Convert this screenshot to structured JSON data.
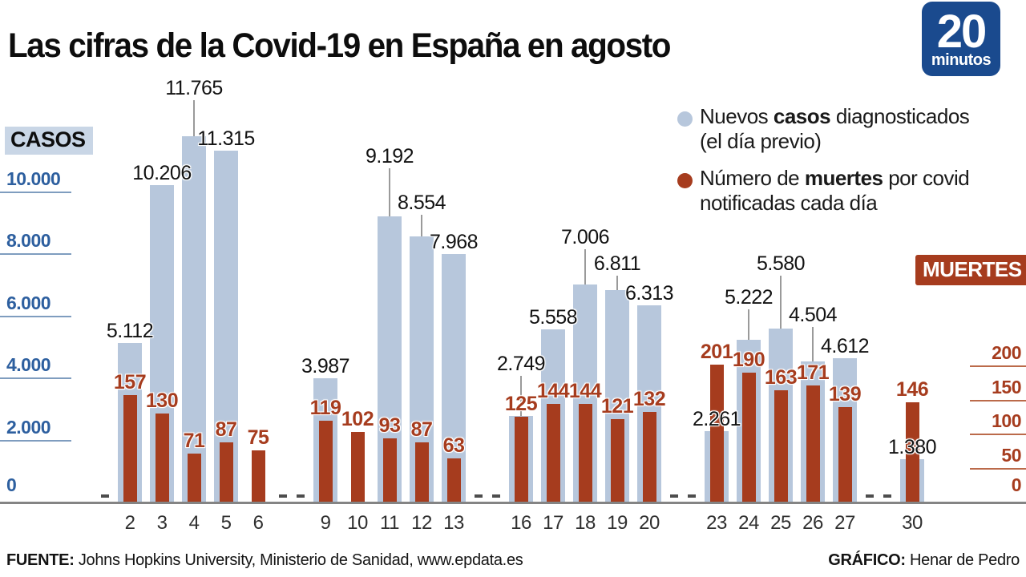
{
  "title": "Las cifras de la Covid-19 en España en agosto",
  "logo": {
    "number": "20",
    "word": "minutos",
    "bg_color": "#1a4a8e"
  },
  "legend": {
    "items": [
      {
        "swatch_color": "#b7c7dc",
        "pre": "Nuevos ",
        "bold": "casos",
        "post": " diagnosticados",
        "line2": "(el día previo)"
      },
      {
        "swatch_color": "#a63c1e",
        "pre": "Número de ",
        "bold": "muertes",
        "post": " por covid",
        "line2": "notificadas cada día"
      }
    ]
  },
  "footer": {
    "source_label": "FUENTE:",
    "source_text": " Johns Hopkins University, Ministerio de Sanidad, www.epdata.es",
    "credit_label": "GRÁFICO:",
    "credit_text": " Henar de Pedro"
  },
  "chart_data": {
    "type": "bar",
    "title": "Las cifras de la Covid-19 en España en agosto",
    "x_unit": "día de agosto",
    "legend_position": "top-right",
    "grid": false,
    "cases_axis": {
      "label": "CASOS",
      "color": "#2d5f9f",
      "max": 12000,
      "ticks": [
        {
          "value": 10000,
          "label": "10.000"
        },
        {
          "value": 8000,
          "label": "8.000"
        },
        {
          "value": 6000,
          "label": "6.000"
        },
        {
          "value": 4000,
          "label": "4.000"
        },
        {
          "value": 2000,
          "label": "2.000"
        }
      ],
      "zero_label": "0"
    },
    "deaths_axis": {
      "label": "MUERTES",
      "color": "#a63c1e",
      "max": 235,
      "ticks": [
        {
          "value": 200,
          "label": "200"
        },
        {
          "value": 150,
          "label": "150"
        },
        {
          "value": 100,
          "label": "100"
        },
        {
          "value": 50,
          "label": "50"
        }
      ],
      "zero_label": "0"
    },
    "series": [
      {
        "name": "Nuevos casos diagnosticados (el día previo)",
        "color": "#b7c7dc"
      },
      {
        "name": "Número de muertes por covid notificadas cada día",
        "color": "#a63c1e"
      }
    ],
    "no_data_days": [
      1,
      7,
      8,
      14,
      15,
      21,
      22,
      28,
      29
    ],
    "points": [
      {
        "day": 2,
        "cases": 5112,
        "cases_label": "5.112",
        "deaths": 157,
        "deaths_label": "157",
        "leader": 0
      },
      {
        "day": 3,
        "cases": 10206,
        "cases_label": "10.206",
        "deaths": 130,
        "deaths_label": "130",
        "leader": 0
      },
      {
        "day": 4,
        "cases": 11765,
        "cases_label": "11.765",
        "deaths": 71,
        "deaths_label": "71",
        "leader": 45
      },
      {
        "day": 5,
        "cases": 11315,
        "cases_label": "11.315",
        "deaths": 87,
        "deaths_label": "87",
        "leader": 0
      },
      {
        "day": 6,
        "cases": null,
        "cases_label": "",
        "deaths": 75,
        "deaths_label": "75",
        "leader": 0
      },
      {
        "day": 9,
        "cases": 3987,
        "cases_label": "3.987",
        "deaths": 119,
        "deaths_label": "119",
        "leader": 0
      },
      {
        "day": 10,
        "cases": null,
        "cases_label": "",
        "deaths": 102,
        "deaths_label": "102",
        "leader": 0
      },
      {
        "day": 11,
        "cases": 9192,
        "cases_label": "9.192",
        "deaths": 93,
        "deaths_label": "93",
        "leader": 60
      },
      {
        "day": 12,
        "cases": 8554,
        "cases_label": "8.554",
        "deaths": 87,
        "deaths_label": "87",
        "leader": 27
      },
      {
        "day": 13,
        "cases": 7968,
        "cases_label": "7.968",
        "deaths": 63,
        "deaths_label": "63",
        "leader": 0
      },
      {
        "day": 16,
        "cases": 2749,
        "cases_label": "2.749",
        "deaths": 125,
        "deaths_label": "125",
        "leader": 50
      },
      {
        "day": 17,
        "cases": 5558,
        "cases_label": "5.558",
        "deaths": 144,
        "deaths_label": "144",
        "leader": 0
      },
      {
        "day": 18,
        "cases": 7006,
        "cases_label": "7.006",
        "deaths": 144,
        "deaths_label": "144",
        "leader": 44
      },
      {
        "day": 19,
        "cases": 6811,
        "cases_label": "6.811",
        "deaths": 121,
        "deaths_label": "121",
        "leader": 18
      },
      {
        "day": 20,
        "cases": 6313,
        "cases_label": "6.313",
        "deaths": 132,
        "deaths_label": "132",
        "leader": 0
      },
      {
        "day": 23,
        "cases": 2261,
        "cases_label": "2.261",
        "deaths": 201,
        "deaths_label": "201",
        "leader": 0
      },
      {
        "day": 24,
        "cases": 5222,
        "cases_label": "5.222",
        "deaths": 190,
        "deaths_label": "190",
        "leader": 38
      },
      {
        "day": 25,
        "cases": 5580,
        "cases_label": "5.580",
        "deaths": 163,
        "deaths_label": "163",
        "leader": 66
      },
      {
        "day": 26,
        "cases": 4504,
        "cases_label": "4.504",
        "deaths": 171,
        "deaths_label": "171",
        "leader": 43
      },
      {
        "day": 27,
        "cases": 4612,
        "cases_label": "4.612",
        "deaths": 139,
        "deaths_label": "139",
        "leader": 0
      },
      {
        "day": 30,
        "cases": 1380,
        "cases_label": "1.380",
        "deaths": 146,
        "deaths_label": "146",
        "leader": 0
      }
    ]
  }
}
